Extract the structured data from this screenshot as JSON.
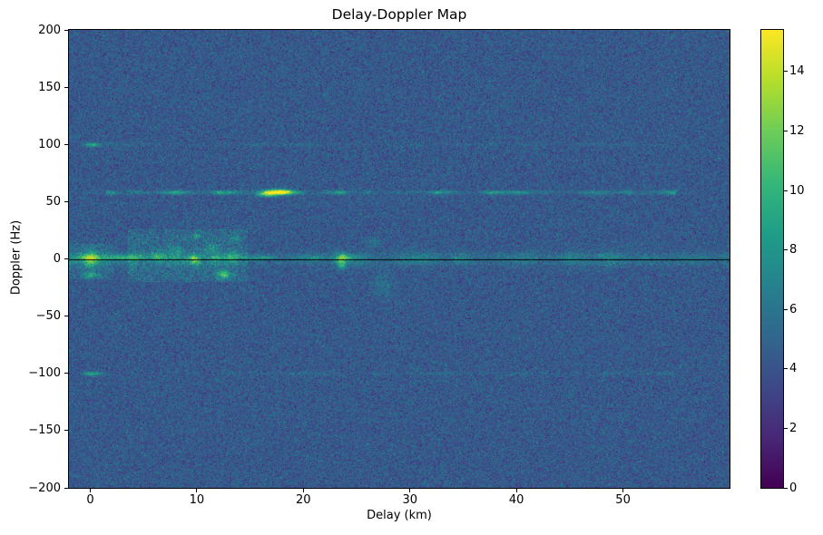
{
  "figure": {
    "background": "#ffffff",
    "spine_color": "#000000"
  },
  "chart_data": {
    "type": "heatmap",
    "title": "Delay-Doppler Map",
    "xlabel": "Delay (km)",
    "ylabel": "Doppler (Hz)",
    "xlim": [
      -2,
      60
    ],
    "ylim": [
      -200,
      200
    ],
    "xticks": [
      0,
      10,
      20,
      30,
      40,
      50
    ],
    "yticks": [
      -200,
      -150,
      -100,
      -50,
      0,
      50,
      100,
      150,
      200
    ],
    "grid": false,
    "legend": "none",
    "colormap": "viridis",
    "cmap_stops": [
      [
        68,
        1,
        84
      ],
      [
        72,
        40,
        120
      ],
      [
        62,
        74,
        137
      ],
      [
        49,
        104,
        142
      ],
      [
        38,
        130,
        142
      ],
      [
        31,
        158,
        137
      ],
      [
        53,
        183,
        121
      ],
      [
        109,
        205,
        89
      ],
      [
        180,
        222,
        44
      ],
      [
        253,
        231,
        37
      ]
    ],
    "vmin": 0,
    "vmax": 15.4,
    "colorbar_ticks": [
      0,
      2,
      4,
      6,
      8,
      10,
      12,
      14
    ],
    "noise": {
      "seed": 42,
      "mean": 4.35,
      "sigma": 1.1,
      "min": 0.7,
      "max": 9.2
    },
    "zero_doppler_line": {
      "doppler": 0,
      "color": "#000000"
    },
    "h_lines": [
      {
        "name": "direct-path-line",
        "doppler": 58,
        "sigma": 1.2,
        "start": 1.5,
        "end": 55,
        "amp": 3.4,
        "tail": 0.5,
        "segment_km": 1.3
      },
      {
        "name": "zero-doppler-clutter-wide",
        "doppler": 0,
        "sigma": 5.0,
        "start": -2,
        "end": 60,
        "amp": 1.1,
        "tail": 0.0,
        "segment_km": 2.0
      },
      {
        "name": "zero-doppler-clutter-strong",
        "doppler": 1,
        "sigma": 1.6,
        "start": -1.8,
        "end": 25,
        "amp": 1.9,
        "tail": 0.3,
        "segment_km": 1.5
      },
      {
        "name": "upper-100hz-line",
        "doppler": 100,
        "sigma": 1.1,
        "start": -1,
        "end": 55,
        "amp": 0.7,
        "tail": 0.2,
        "segment_km": 2.0
      },
      {
        "name": "lower-100hz-line",
        "doppler": -100,
        "sigma": 1.1,
        "start": -1,
        "end": 55,
        "amp": 0.7,
        "tail": 0.2,
        "segment_km": 2.0
      }
    ],
    "blobs": [
      {
        "d": 0.0,
        "f": 0,
        "sd": 0.5,
        "sf": 5.0,
        "amp": 5.5
      },
      {
        "d": 0.0,
        "f": -14,
        "sd": 0.45,
        "sf": 2.0,
        "amp": 4.0
      },
      {
        "d": 0.1,
        "f": 100,
        "sd": 0.5,
        "sf": 1.3,
        "amp": 5.0
      },
      {
        "d": 0.1,
        "f": -100,
        "sd": 0.5,
        "sf": 1.3,
        "amp": 4.5
      },
      {
        "d": 6.3,
        "f": 2,
        "sd": 0.5,
        "sf": 3.5,
        "amp": 3.0
      },
      {
        "d": 8.0,
        "f": 8,
        "sd": 0.4,
        "sf": 2.5,
        "amp": 2.2
      },
      {
        "d": 9.7,
        "f": 0,
        "sd": 0.35,
        "sf": 3.0,
        "amp": 6.5
      },
      {
        "d": 9.9,
        "f": 20,
        "sd": 0.3,
        "sf": 2.0,
        "amp": 3.0
      },
      {
        "d": 11.5,
        "f": 10,
        "sd": 0.4,
        "sf": 3.0,
        "amp": 2.2
      },
      {
        "d": 12.5,
        "f": -13,
        "sd": 0.4,
        "sf": 2.5,
        "amp": 6.0
      },
      {
        "d": 13.3,
        "f": 2,
        "sd": 0.4,
        "sf": 4.0,
        "amp": 3.2
      },
      {
        "d": 13.6,
        "f": 18,
        "sd": 0.3,
        "sf": 2.0,
        "amp": 2.4
      },
      {
        "d": 16.4,
        "f": 56.5,
        "sd": 0.6,
        "sf": 1.5,
        "amp": 5.0
      },
      {
        "d": 17.3,
        "f": 58.5,
        "sd": 0.8,
        "sf": 1.7,
        "amp": 10.5
      },
      {
        "d": 18.3,
        "f": 59,
        "sd": 0.5,
        "sf": 1.4,
        "amp": 5.0
      },
      {
        "d": 23.5,
        "f": 0,
        "sd": 0.35,
        "sf": 3.5,
        "amp": 6.0
      },
      {
        "d": 23.6,
        "f": -6,
        "sd": 0.3,
        "sf": 2.0,
        "amp": 3.0
      },
      {
        "d": 26.6,
        "f": 15,
        "sd": 0.5,
        "sf": 3.0,
        "amp": 1.5
      },
      {
        "d": 27.5,
        "f": -22,
        "sd": 0.6,
        "sf": 9.0,
        "amp": 1.2
      },
      {
        "d": 34.5,
        "f": 0,
        "sd": 0.4,
        "sf": 2.0,
        "amp": 2.0
      }
    ],
    "regions": [
      {
        "d0": 3.5,
        "d1": 14.8,
        "f0": -20,
        "f1": 26,
        "amp": 1.5
      },
      {
        "d0": -2,
        "d1": 2.2,
        "f0": -18,
        "f1": 14,
        "amp": 1.2
      },
      {
        "d0": -2,
        "d1": 60,
        "f0": -5,
        "f1": 5,
        "amp": 0.7
      }
    ]
  }
}
